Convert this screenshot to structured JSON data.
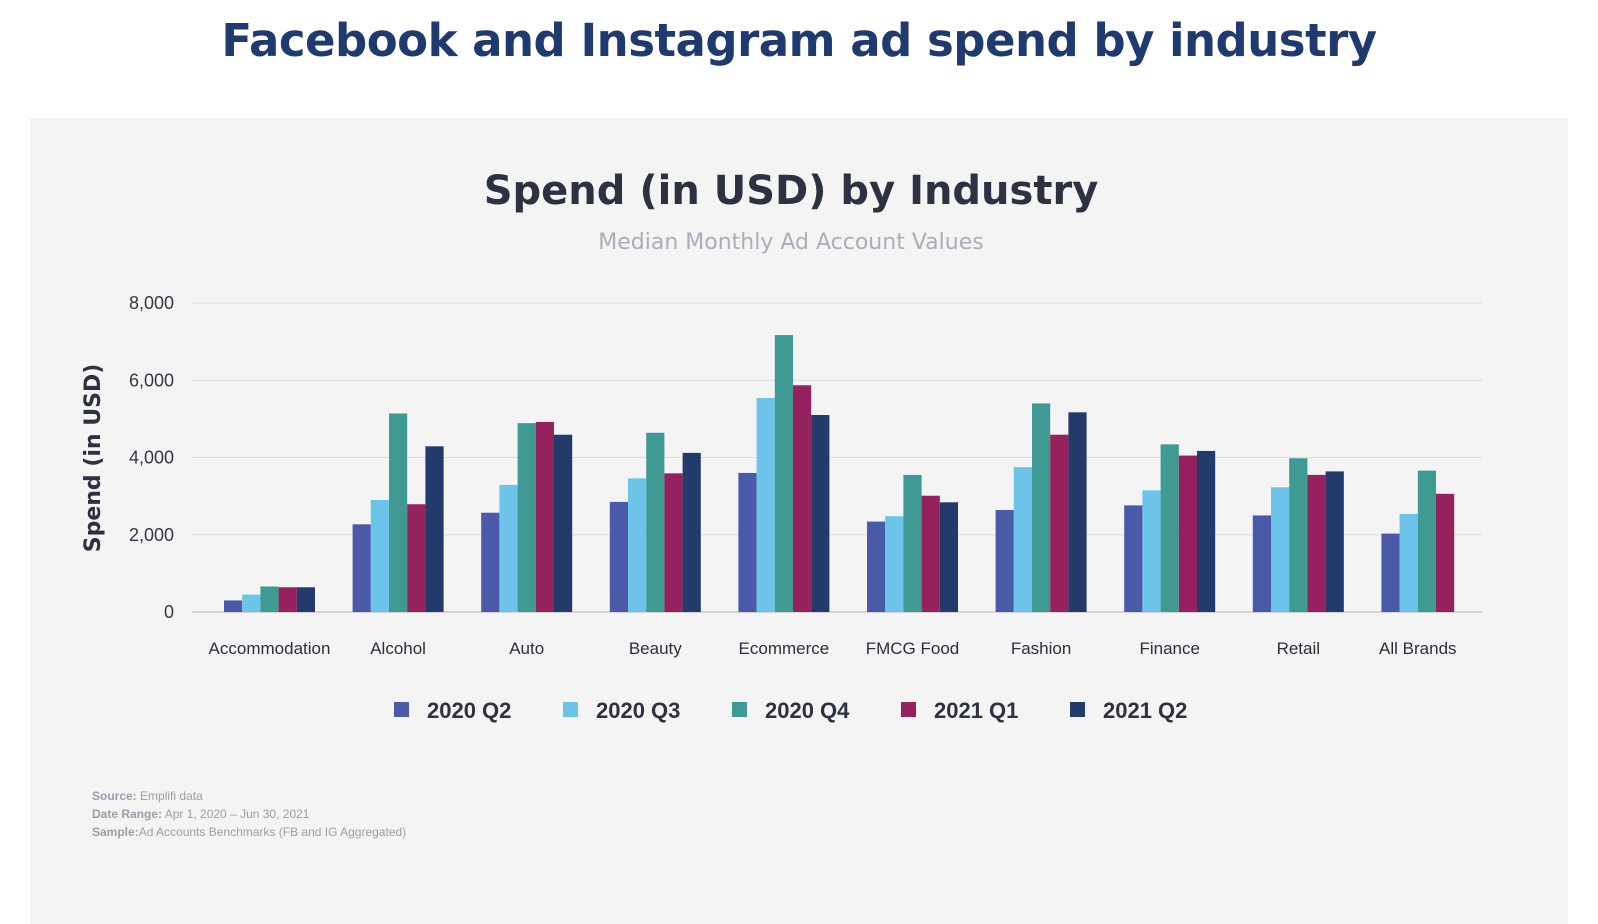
{
  "page": {
    "title": "Facebook and Instagram ad spend by industry"
  },
  "chart_data": {
    "type": "bar",
    "title": "Spend (in USD) by Industry",
    "subtitle": "Median Monthly Ad Account Values",
    "xlabel": "",
    "ylabel": "Spend (in USD)",
    "ylim": [
      0,
      8000
    ],
    "yticks": [
      0,
      2000,
      4000,
      6000,
      8000
    ],
    "ytick_labels": [
      "0",
      "2,000",
      "4,000",
      "6,000",
      "8,000"
    ],
    "grid": true,
    "legend_position": "bottom",
    "categories": [
      "Accommodation",
      "Alcohol",
      "Auto",
      "Beauty",
      "Ecommerce",
      "FMCG Food",
      "Fashion",
      "Finance",
      "Retail",
      "All Brands"
    ],
    "series": [
      {
        "name": "2020 Q2",
        "color": "#4a5aa8",
        "values": [
          300,
          2270,
          2570,
          2850,
          3600,
          2340,
          2640,
          2760,
          2500,
          2030
        ]
      },
      {
        "name": "2020 Q3",
        "color": "#6cc4e8",
        "values": [
          450,
          2900,
          3290,
          3460,
          5540,
          2480,
          3750,
          3150,
          3230,
          2540
        ]
      },
      {
        "name": "2020 Q4",
        "color": "#3f9a93",
        "values": [
          660,
          5140,
          4890,
          4640,
          7170,
          3550,
          5400,
          4340,
          3980,
          3660
        ]
      },
      {
        "name": "2021 Q1",
        "color": "#95225e",
        "values": [
          640,
          2790,
          4920,
          3590,
          5870,
          3010,
          4590,
          4050,
          3550,
          3060
        ]
      },
      {
        "name": "2021 Q2",
        "color": "#233b6a",
        "values": [
          640,
          4290,
          4590,
          4120,
          5100,
          2840,
          5170,
          4170,
          3640,
          null
        ]
      }
    ]
  },
  "source_notes": {
    "source_key": "Source:",
    "source_value": " Emplifi data",
    "date_key": "Date Range:",
    "date_value": " Apr 1, 2020 – Jun 30, 2021",
    "sample_key": "Sample:",
    "sample_value": "Ad Accounts Benchmarks (FB and IG Aggregated)"
  }
}
